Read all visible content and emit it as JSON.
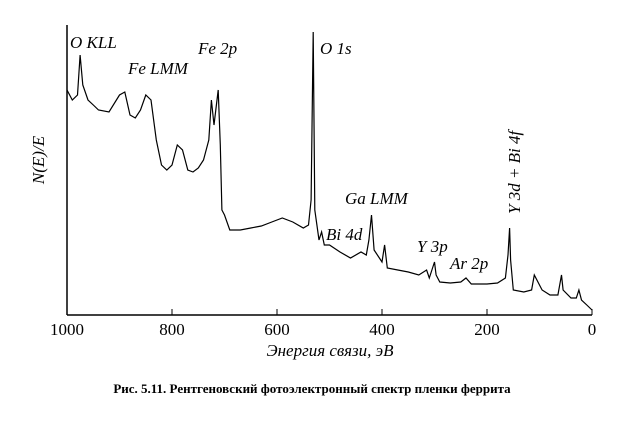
{
  "chart_data": {
    "type": "line",
    "title": "Рис. 5.11. Рентгеновский фотоэлектронный спектр пленки феррита",
    "xlabel": "Энергия связи, эВ",
    "ylabel": "N(E)/E",
    "xlim": [
      1000,
      0
    ],
    "xticks": [
      1000,
      800,
      600,
      400,
      200,
      0
    ],
    "ylim": [
      0,
      285
    ],
    "annotations": [
      "O KLL",
      "Fe LMM",
      "Fe 2p",
      "O 1s",
      "Ga LMM",
      "Bi 4d",
      "Y 3p",
      "Ar 2p",
      "Y 3d + Bi 4f"
    ],
    "series": [
      {
        "color": "#000000",
        "x": [
          1000,
          990,
          980,
          975,
          970,
          960,
          950,
          940,
          920,
          900,
          890,
          880,
          870,
          860,
          850,
          840,
          830,
          820,
          810,
          800,
          790,
          780,
          770,
          760,
          750,
          740,
          730,
          725,
          720,
          712,
          708,
          705,
          700,
          690,
          670,
          650,
          630,
          610,
          590,
          570,
          550,
          540,
          535,
          531,
          528,
          520,
          515,
          510,
          500,
          480,
          460,
          440,
          430,
          425,
          420,
          415,
          400,
          395,
          390,
          370,
          350,
          330,
          315,
          310,
          300,
          297,
          290,
          270,
          250,
          240,
          230,
          200,
          180,
          165,
          160,
          157,
          155,
          150,
          130,
          115,
          110,
          100,
          95,
          80,
          65,
          58,
          55,
          40,
          30,
          25,
          20,
          10,
          0
        ],
        "values": [
          225,
          215,
          220,
          260,
          230,
          215,
          210,
          205,
          203,
          220,
          223,
          200,
          197,
          205,
          220,
          215,
          175,
          150,
          145,
          150,
          170,
          165,
          145,
          143,
          147,
          155,
          175,
          215,
          190,
          225,
          170,
          105,
          100,
          85,
          85,
          87,
          89,
          93,
          97,
          93,
          87,
          90,
          115,
          283,
          105,
          75,
          83,
          70,
          70,
          63,
          57,
          63,
          60,
          75,
          100,
          65,
          53,
          70,
          47,
          45,
          43,
          40,
          45,
          37,
          53,
          40,
          33,
          32,
          33,
          37,
          31,
          31,
          32,
          37,
          60,
          87,
          55,
          25,
          23,
          25,
          40,
          30,
          25,
          20,
          20,
          40,
          25,
          17,
          17,
          25,
          15,
          10,
          5
        ]
      }
    ]
  }
}
